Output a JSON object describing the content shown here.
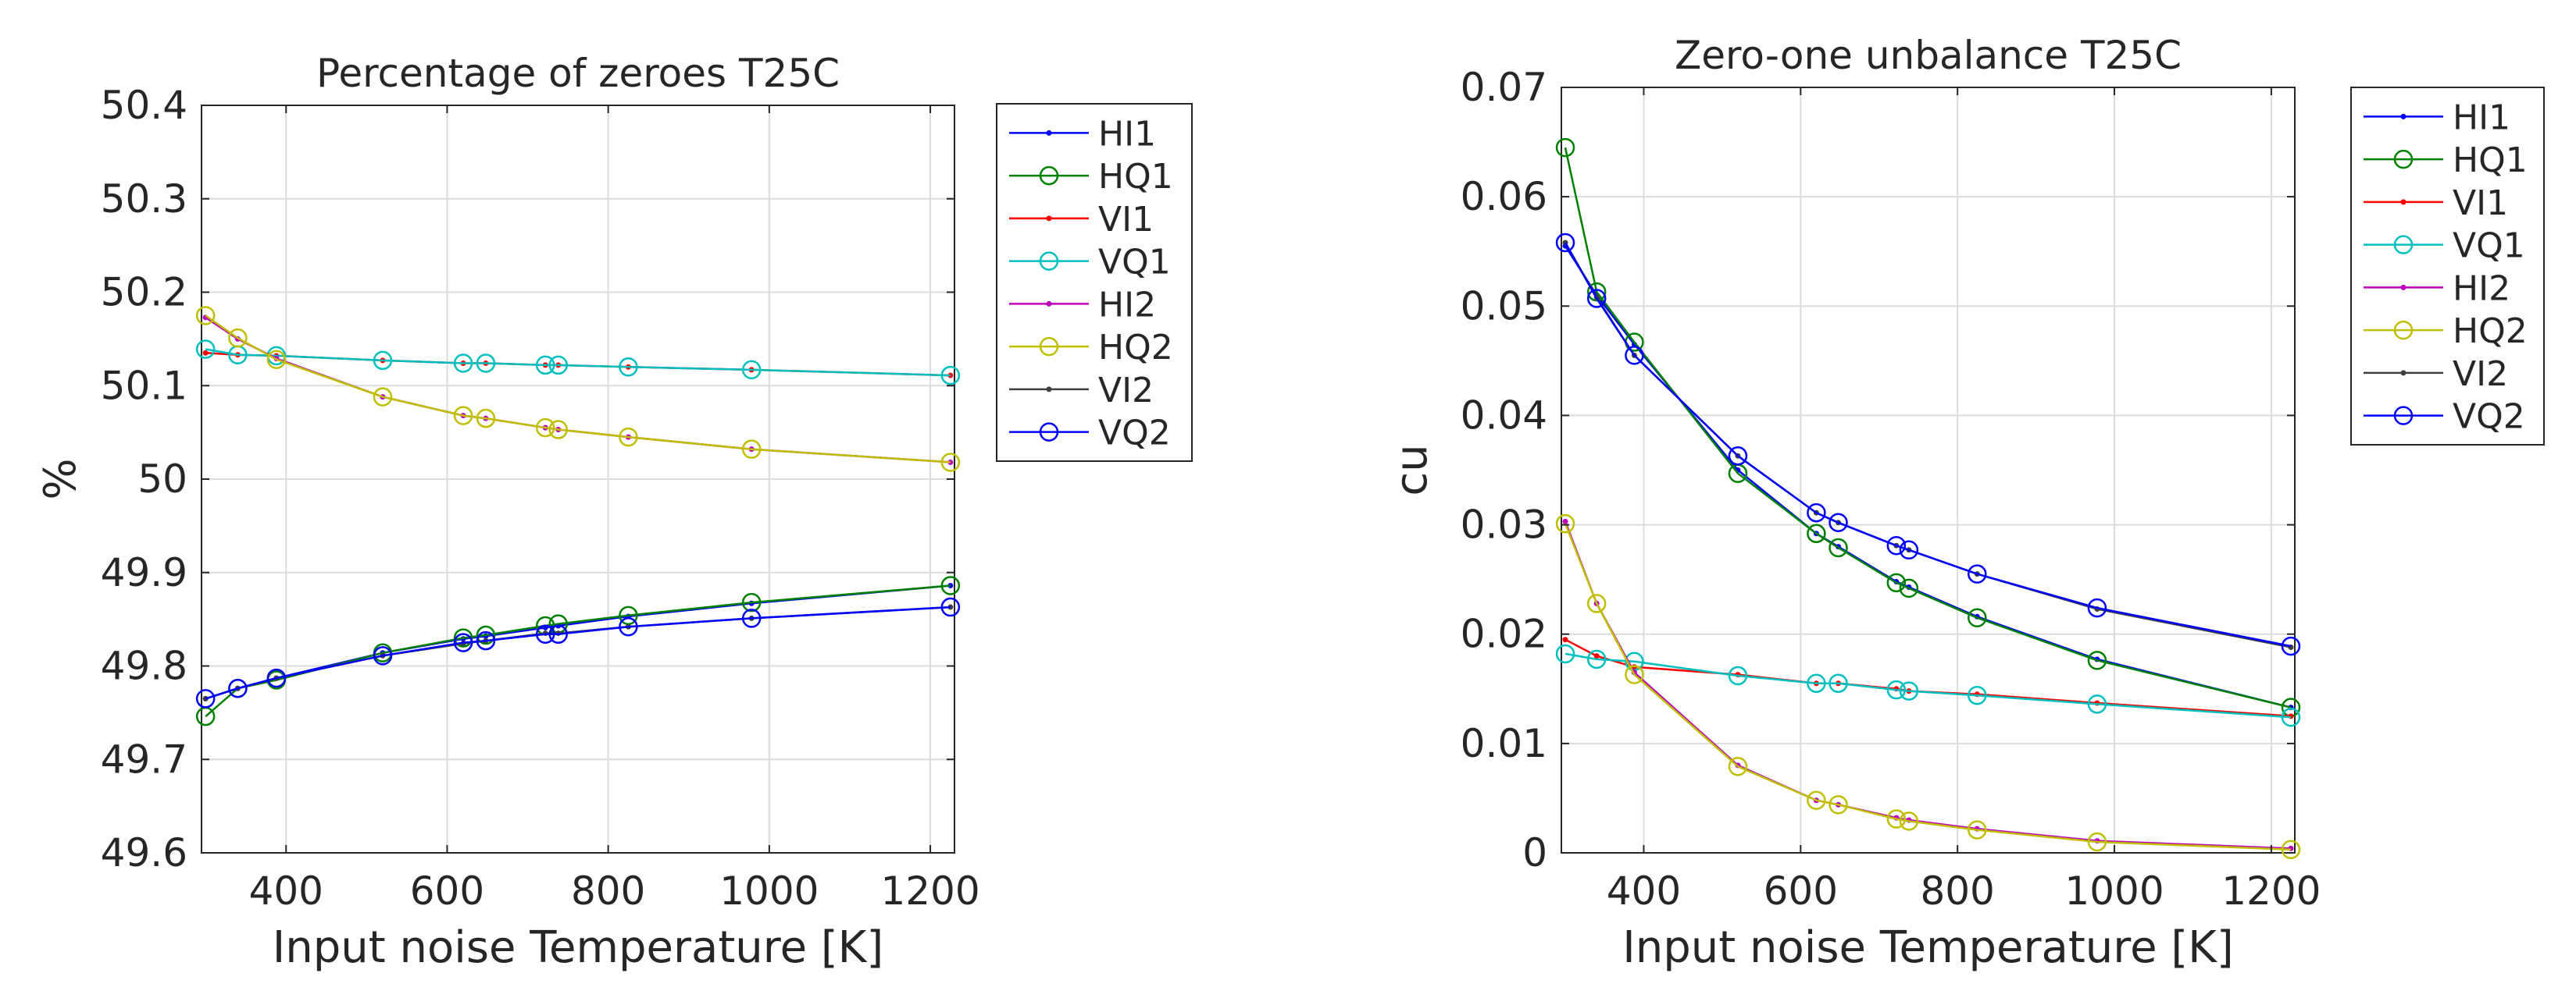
{
  "chart_data": [
    {
      "type": "line",
      "title": "Percentage of zeroes T25C",
      "xlabel": "Input noise Temperature [K]",
      "ylabel": "%",
      "xlim": [
        295,
        1230
      ],
      "ylim": [
        49.6,
        50.4
      ],
      "xticks": [
        400,
        600,
        800,
        1000,
        1200
      ],
      "yticks": [
        49.6,
        49.7,
        49.8,
        49.9,
        50,
        50.1,
        50.2,
        50.3,
        50.4
      ],
      "ytick_labels": [
        "49.6",
        "49.7",
        "49.8",
        "49.9",
        "50",
        "50.1",
        "50.2",
        "50.3",
        "50.4"
      ],
      "grid": true,
      "legend_position": "outside-right",
      "x": [
        300,
        340,
        388,
        520,
        620,
        648,
        722,
        738,
        825,
        978,
        1225
      ],
      "series": [
        {
          "name": "HI1",
          "color": "#0000ff",
          "marker": "dot",
          "values": [
            49.765,
            49.776,
            49.787,
            49.814,
            49.829,
            49.832,
            49.841,
            49.843,
            49.853,
            49.867,
            49.886
          ]
        },
        {
          "name": "HQ1",
          "color": "#008000",
          "marker": "circle",
          "values": [
            49.746,
            49.776,
            49.785,
            49.814,
            49.83,
            49.833,
            49.843,
            49.845,
            49.854,
            49.868,
            49.886
          ]
        },
        {
          "name": "VI1",
          "color": "#ff0000",
          "marker": "dot",
          "values": [
            50.135,
            50.133,
            50.132,
            50.127,
            50.124,
            50.124,
            50.122,
            50.122,
            50.12,
            50.117,
            50.111
          ]
        },
        {
          "name": "VQ1",
          "color": "#00bfbf",
          "marker": "circle",
          "values": [
            50.139,
            50.133,
            50.132,
            50.127,
            50.124,
            50.124,
            50.122,
            50.122,
            50.12,
            50.117,
            50.111
          ]
        },
        {
          "name": "HI2",
          "color": "#bf00bf",
          "marker": "dot",
          "values": [
            50.173,
            50.15,
            50.129,
            50.088,
            50.068,
            50.065,
            50.055,
            50.053,
            50.045,
            50.032,
            50.018
          ]
        },
        {
          "name": "HQ2",
          "color": "#bfbf00",
          "marker": "circle",
          "values": [
            50.175,
            50.151,
            50.128,
            50.088,
            50.068,
            50.065,
            50.055,
            50.053,
            50.045,
            50.032,
            50.018
          ]
        },
        {
          "name": "VI2",
          "color": "#404040",
          "marker": "dot",
          "values": [
            49.765,
            49.776,
            49.787,
            49.811,
            49.824,
            49.827,
            49.835,
            49.835,
            49.842,
            49.851,
            49.863
          ]
        },
        {
          "name": "VQ2",
          "color": "#0000ff",
          "marker": "circle",
          "values": [
            49.765,
            49.776,
            49.787,
            49.811,
            49.825,
            49.827,
            49.834,
            49.834,
            49.842,
            49.851,
            49.863
          ]
        }
      ]
    },
    {
      "type": "line",
      "title": "Zero-one unbalance T25C",
      "xlabel": "Input noise Temperature [K]",
      "ylabel": "cu",
      "xlim": [
        295,
        1230
      ],
      "ylim": [
        0,
        0.07
      ],
      "xticks": [
        400,
        600,
        800,
        1000,
        1200
      ],
      "yticks": [
        0,
        0.01,
        0.02,
        0.03,
        0.04,
        0.05,
        0.06,
        0.07
      ],
      "ytick_labels": [
        "0",
        "0.01",
        "0.02",
        "0.03",
        "0.04",
        "0.05",
        "0.06",
        "0.07"
      ],
      "grid": true,
      "legend_position": "outside-right",
      "x": [
        300,
        340,
        388,
        520,
        620,
        648,
        722,
        738,
        825,
        978,
        1225
      ],
      "series": [
        {
          "name": "HI1",
          "color": "#0000ff",
          "marker": "dot",
          "values": [
            0.0555,
            0.051,
            0.0465,
            0.035,
            0.0292,
            0.028,
            0.0248,
            0.0243,
            0.0216,
            0.0177,
            0.0133
          ]
        },
        {
          "name": "HQ1",
          "color": "#008000",
          "marker": "circle",
          "values": [
            0.0645,
            0.0513,
            0.0467,
            0.0347,
            0.0292,
            0.0279,
            0.0247,
            0.0242,
            0.0215,
            0.0176,
            0.0133
          ]
        },
        {
          "name": "VI1",
          "color": "#ff0000",
          "marker": "dot",
          "values": [
            0.0195,
            0.018,
            0.017,
            0.0163,
            0.0155,
            0.0155,
            0.015,
            0.0148,
            0.0145,
            0.0137,
            0.0125
          ]
        },
        {
          "name": "VQ1",
          "color": "#00bfbf",
          "marker": "circle",
          "values": [
            0.0182,
            0.0177,
            0.0175,
            0.0162,
            0.0155,
            0.0155,
            0.0149,
            0.0148,
            0.0144,
            0.0136,
            0.0124
          ]
        },
        {
          "name": "HI2",
          "color": "#bf00bf",
          "marker": "dot",
          "values": [
            0.0303,
            0.0228,
            0.0165,
            0.008,
            0.0048,
            0.0044,
            0.0032,
            0.003,
            0.0022,
            0.0011,
            0.0004
          ]
        },
        {
          "name": "HQ2",
          "color": "#bfbf00",
          "marker": "circle",
          "values": [
            0.0301,
            0.0228,
            0.0163,
            0.0079,
            0.0048,
            0.0044,
            0.0031,
            0.0029,
            0.0021,
            0.001,
            0.0003
          ]
        },
        {
          "name": "VI2",
          "color": "#404040",
          "marker": "dot",
          "values": [
            0.0558,
            0.0508,
            0.0455,
            0.0363,
            0.0311,
            0.0302,
            0.0281,
            0.0277,
            0.0255,
            0.0223,
            0.0188
          ]
        },
        {
          "name": "VQ2",
          "color": "#0000ff",
          "marker": "circle",
          "values": [
            0.0558,
            0.0507,
            0.0455,
            0.0363,
            0.0311,
            0.0302,
            0.0281,
            0.0277,
            0.0255,
            0.0224,
            0.0189
          ]
        }
      ]
    }
  ]
}
